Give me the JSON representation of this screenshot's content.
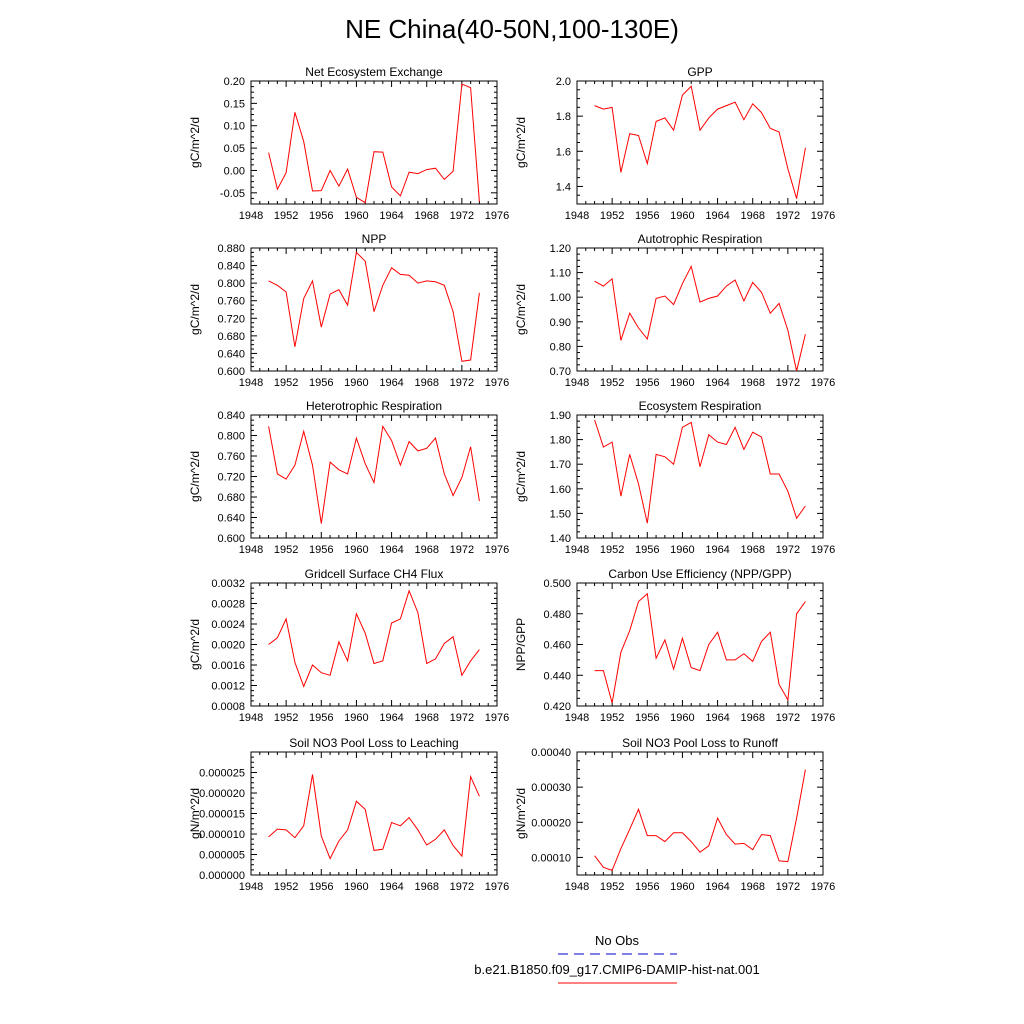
{
  "title": "NE China(40-50N,100-130E)",
  "legend": {
    "entries": [
      {
        "label": "No Obs",
        "color": "#0000cc",
        "dash": true
      },
      {
        "label": "b.e21.B1850.f09_g17.CMIP6-DAMIP-hist-nat.001",
        "color": "#ff0000",
        "dash": false
      }
    ]
  },
  "colors": {
    "series": "#ff0000",
    "axis": "#000000"
  },
  "chart_data": [
    {
      "type": "line",
      "title": "Net Ecosystem Exchange",
      "ylabel": "gC/m^2/d",
      "xlim": [
        1948,
        1976
      ],
      "xticks": [
        "1948",
        "1952",
        "1956",
        "1960",
        "1964",
        "1968",
        "1972",
        "1976"
      ],
      "ylim": [
        -0.075,
        0.2
      ],
      "yticks": [
        "-0.05",
        "0.00",
        "0.05",
        "0.10",
        "0.15",
        "0.20"
      ],
      "x": [
        1950,
        1951,
        1952,
        1953,
        1954,
        1955,
        1956,
        1957,
        1958,
        1959,
        1960,
        1961,
        1962,
        1963,
        1964,
        1965,
        1966,
        1967,
        1968,
        1969,
        1970,
        1971,
        1972,
        1973,
        1974
      ],
      "y": [
        0.04,
        -0.042,
        -0.005,
        0.13,
        0.065,
        -0.046,
        -0.045,
        0.0,
        -0.035,
        0.003,
        -0.06,
        -0.072,
        0.042,
        0.041,
        -0.037,
        -0.057,
        -0.004,
        -0.007,
        0.002,
        0.005,
        -0.02,
        -0.002,
        0.193,
        0.185,
        -0.07
      ]
    },
    {
      "type": "line",
      "title": "GPP",
      "ylabel": "gC/m^2/d",
      "xlim": [
        1948,
        1976
      ],
      "xticks": [
        "1948",
        "1952",
        "1956",
        "1960",
        "1964",
        "1968",
        "1972",
        "1976"
      ],
      "ylim": [
        1.3,
        2.0
      ],
      "yticks": [
        "1.4",
        "1.6",
        "1.8",
        "2.0"
      ],
      "x": [
        1950,
        1951,
        1952,
        1953,
        1954,
        1955,
        1956,
        1957,
        1958,
        1959,
        1960,
        1961,
        1962,
        1963,
        1964,
        1965,
        1966,
        1967,
        1968,
        1969,
        1970,
        1971,
        1972,
        1973,
        1974
      ],
      "y": [
        1.86,
        1.84,
        1.85,
        1.48,
        1.7,
        1.69,
        1.53,
        1.77,
        1.79,
        1.72,
        1.92,
        1.97,
        1.72,
        1.79,
        1.84,
        1.86,
        1.88,
        1.78,
        1.87,
        1.82,
        1.73,
        1.71,
        1.5,
        1.33,
        1.62
      ]
    },
    {
      "type": "line",
      "title": "NPP",
      "ylabel": "gC/m^2/d",
      "xlim": [
        1948,
        1976
      ],
      "xticks": [
        "1948",
        "1952",
        "1956",
        "1960",
        "1964",
        "1968",
        "1972",
        "1976"
      ],
      "ylim": [
        0.6,
        0.88
      ],
      "yticks": [
        "0.600",
        "0.640",
        "0.680",
        "0.720",
        "0.760",
        "0.800",
        "0.840",
        "0.880"
      ],
      "x": [
        1950,
        1951,
        1952,
        1953,
        1954,
        1955,
        1956,
        1957,
        1958,
        1959,
        1960,
        1961,
        1962,
        1963,
        1964,
        1965,
        1966,
        1967,
        1968,
        1969,
        1970,
        1971,
        1972,
        1973,
        1974
      ],
      "y": [
        0.805,
        0.795,
        0.78,
        0.655,
        0.765,
        0.805,
        0.7,
        0.775,
        0.785,
        0.75,
        0.87,
        0.85,
        0.735,
        0.795,
        0.835,
        0.82,
        0.818,
        0.8,
        0.805,
        0.803,
        0.795,
        0.735,
        0.622,
        0.625,
        0.778
      ]
    },
    {
      "type": "line",
      "title": "Autotrophic Respiration",
      "ylabel": "gC/m^2/d",
      "xlim": [
        1948,
        1976
      ],
      "xticks": [
        "1948",
        "1952",
        "1956",
        "1960",
        "1964",
        "1968",
        "1972",
        "1976"
      ],
      "ylim": [
        0.7,
        1.2
      ],
      "yticks": [
        "0.70",
        "0.80",
        "0.90",
        "1.00",
        "1.10",
        "1.20"
      ],
      "x": [
        1950,
        1951,
        1952,
        1953,
        1954,
        1955,
        1956,
        1957,
        1958,
        1959,
        1960,
        1961,
        1962,
        1963,
        1964,
        1965,
        1966,
        1967,
        1968,
        1969,
        1970,
        1971,
        1972,
        1973,
        1974
      ],
      "y": [
        1.065,
        1.045,
        1.075,
        0.825,
        0.935,
        0.875,
        0.83,
        0.995,
        1.005,
        0.97,
        1.055,
        1.125,
        0.98,
        0.995,
        1.005,
        1.045,
        1.07,
        0.985,
        1.06,
        1.02,
        0.935,
        0.975,
        0.865,
        0.7,
        0.85
      ]
    },
    {
      "type": "line",
      "title": "Heterotrophic Respiration",
      "ylabel": "gC/m^2/d",
      "xlim": [
        1948,
        1976
      ],
      "xticks": [
        "1948",
        "1952",
        "1956",
        "1960",
        "1964",
        "1968",
        "1972",
        "1976"
      ],
      "ylim": [
        0.6,
        0.84
      ],
      "yticks": [
        "0.600",
        "0.640",
        "0.680",
        "0.720",
        "0.760",
        "0.800",
        "0.840"
      ],
      "x": [
        1950,
        1951,
        1952,
        1953,
        1954,
        1955,
        1956,
        1957,
        1958,
        1959,
        1960,
        1961,
        1962,
        1963,
        1964,
        1965,
        1966,
        1967,
        1968,
        1969,
        1970,
        1971,
        1972,
        1973,
        1974
      ],
      "y": [
        0.818,
        0.725,
        0.715,
        0.742,
        0.808,
        0.742,
        0.628,
        0.748,
        0.733,
        0.725,
        0.795,
        0.745,
        0.708,
        0.818,
        0.79,
        0.742,
        0.788,
        0.77,
        0.775,
        0.795,
        0.725,
        0.683,
        0.718,
        0.778,
        0.672
      ]
    },
    {
      "type": "line",
      "title": "Ecosystem Respiration",
      "ylabel": "gC/m^2/d",
      "xlim": [
        1948,
        1976
      ],
      "xticks": [
        "1948",
        "1952",
        "1956",
        "1960",
        "1964",
        "1968",
        "1972",
        "1976"
      ],
      "ylim": [
        1.4,
        1.9
      ],
      "yticks": [
        "1.40",
        "1.50",
        "1.60",
        "1.70",
        "1.80",
        "1.90"
      ],
      "x": [
        1950,
        1951,
        1952,
        1953,
        1954,
        1955,
        1956,
        1957,
        1958,
        1959,
        1960,
        1961,
        1962,
        1963,
        1964,
        1965,
        1966,
        1967,
        1968,
        1969,
        1970,
        1971,
        1972,
        1973,
        1974
      ],
      "y": [
        1.88,
        1.77,
        1.79,
        1.57,
        1.74,
        1.62,
        1.46,
        1.74,
        1.73,
        1.7,
        1.85,
        1.87,
        1.69,
        1.82,
        1.79,
        1.78,
        1.85,
        1.76,
        1.83,
        1.81,
        1.66,
        1.66,
        1.59,
        1.48,
        1.53
      ]
    },
    {
      "type": "line",
      "title": "Gridcell Surface CH4 Flux",
      "ylabel": "gC/m^2/d",
      "xlim": [
        1948,
        1976
      ],
      "xticks": [
        "1948",
        "1952",
        "1956",
        "1960",
        "1964",
        "1968",
        "1972",
        "1976"
      ],
      "ylim": [
        0.0008,
        0.0032
      ],
      "yticks": [
        "0.0008",
        "0.0012",
        "0.0016",
        "0.0020",
        "0.0024",
        "0.0028",
        "0.0032"
      ],
      "x": [
        1950,
        1951,
        1952,
        1953,
        1954,
        1955,
        1956,
        1957,
        1958,
        1959,
        1960,
        1961,
        1962,
        1963,
        1964,
        1965,
        1966,
        1967,
        1968,
        1969,
        1970,
        1971,
        1972,
        1973,
        1974
      ],
      "y": [
        0.002,
        0.00213,
        0.0025,
        0.00165,
        0.00118,
        0.0016,
        0.00145,
        0.0014,
        0.00205,
        0.00168,
        0.0026,
        0.00222,
        0.00163,
        0.00168,
        0.00242,
        0.0025,
        0.00305,
        0.00262,
        0.00163,
        0.00172,
        0.00202,
        0.00215,
        0.0014,
        0.00168,
        0.0019
      ]
    },
    {
      "type": "line",
      "title": "Carbon Use Efficiency (NPP/GPP)",
      "ylabel": "NPP/GPP",
      "xlim": [
        1948,
        1976
      ],
      "xticks": [
        "1948",
        "1952",
        "1956",
        "1960",
        "1964",
        "1968",
        "1972",
        "1976"
      ],
      "ylim": [
        0.42,
        0.5
      ],
      "yticks": [
        "0.420",
        "0.440",
        "0.460",
        "0.480",
        "0.500"
      ],
      "x": [
        1950,
        1951,
        1952,
        1953,
        1954,
        1955,
        1956,
        1957,
        1958,
        1959,
        1960,
        1961,
        1962,
        1963,
        1964,
        1965,
        1966,
        1967,
        1968,
        1969,
        1970,
        1971,
        1972,
        1973,
        1974
      ],
      "y": [
        0.443,
        0.443,
        0.422,
        0.455,
        0.469,
        0.488,
        0.493,
        0.451,
        0.463,
        0.444,
        0.464,
        0.445,
        0.443,
        0.46,
        0.468,
        0.45,
        0.45,
        0.454,
        0.449,
        0.462,
        0.468,
        0.434,
        0.424,
        0.48,
        0.488
      ]
    },
    {
      "type": "line",
      "title": "Soil NO3 Pool Loss to Leaching",
      "ylabel": "gN/m^2/d",
      "xlim": [
        1948,
        1976
      ],
      "xticks": [
        "1948",
        "1952",
        "1956",
        "1960",
        "1964",
        "1968",
        "1972",
        "1976"
      ],
      "ylim": [
        0.0,
        3e-05
      ],
      "yticks": [
        "0.000000",
        "0.000005",
        "0.000010",
        "0.000015",
        "0.000020",
        "0.000025"
      ],
      "x": [
        1950,
        1951,
        1952,
        1953,
        1954,
        1955,
        1956,
        1957,
        1958,
        1959,
        1960,
        1961,
        1962,
        1963,
        1964,
        1965,
        1966,
        1967,
        1968,
        1969,
        1970,
        1971,
        1972,
        1973,
        1974
      ],
      "y": [
        9.3e-06,
        1.12e-05,
        1.1e-05,
        9.1e-06,
        1.2e-05,
        2.45e-05,
        9.5e-06,
        4e-06,
        8.3e-06,
        1.1e-05,
        1.8e-05,
        1.6e-05,
        6e-06,
        6.3e-06,
        1.28e-05,
        1.2e-05,
        1.4e-05,
        1.1e-05,
        7.3e-06,
        8.7e-06,
        1.1e-05,
        7.2e-06,
        4.6e-06,
        2.4e-05,
        1.92e-05
      ]
    },
    {
      "type": "line",
      "title": "Soil NO3 Pool Loss to Runoff",
      "ylabel": "gN/m^2/d",
      "xlim": [
        1948,
        1976
      ],
      "xticks": [
        "1948",
        "1952",
        "1956",
        "1960",
        "1964",
        "1968",
        "1972",
        "1976"
      ],
      "ylim": [
        5e-05,
        0.0004
      ],
      "yticks": [
        "0.00010",
        "0.00020",
        "0.00030",
        "0.00040"
      ],
      "x": [
        1950,
        1951,
        1952,
        1953,
        1954,
        1955,
        1956,
        1957,
        1958,
        1959,
        1960,
        1961,
        1962,
        1963,
        1964,
        1965,
        1966,
        1967,
        1968,
        1969,
        1970,
        1971,
        1972,
        1973,
        1974
      ],
      "y": [
        0.000105,
        7.2e-05,
        6.3e-05,
        0.000125,
        0.00018,
        0.000237,
        0.000162,
        0.000162,
        0.000145,
        0.00017,
        0.00017,
        0.000145,
        0.000115,
        0.000133,
        0.000212,
        0.000165,
        0.000138,
        0.00014,
        0.000122,
        0.000165,
        0.000162,
        9e-05,
        8.8e-05,
        0.000212,
        0.00035
      ]
    }
  ]
}
